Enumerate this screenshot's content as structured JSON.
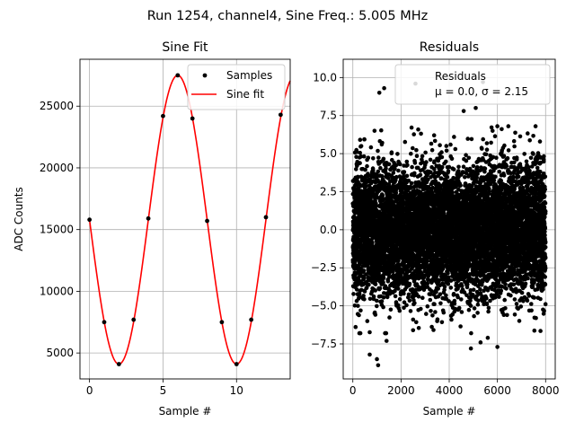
{
  "figure": {
    "suptitle": "Run 1254, channel4, Sine Freq.: 5.005 MHz"
  },
  "colors": {
    "samples": "#000000",
    "fit": "#ff0000",
    "grid": "#b0b0b0",
    "residuals": "#000000"
  },
  "chart_data": [
    {
      "type": "scatter",
      "title": "Sine Fit",
      "xlabel": "Sample #",
      "ylabel": "ADC Counts",
      "xlim": [
        -0.65,
        13.65
      ],
      "ylim": [
        2900,
        28800
      ],
      "xticks": [
        0,
        5,
        10
      ],
      "yticks": [
        5000,
        10000,
        15000,
        20000,
        25000
      ],
      "grid": true,
      "legend_position": "upper right",
      "series": [
        {
          "name": "Samples",
          "style": "points",
          "x": [
            0,
            1,
            2,
            3,
            4,
            5,
            6,
            7,
            8,
            9,
            10,
            11,
            12,
            13
          ],
          "y": [
            15800,
            7500,
            4100,
            7700,
            15900,
            24200,
            27500,
            24000,
            15700,
            7500,
            4100,
            7700,
            16000,
            24300
          ]
        },
        {
          "name": "Sine fit",
          "style": "line",
          "function": {
            "offset": 15800,
            "amplitude": 11700,
            "period": 8,
            "phase_sample": 0
          },
          "x_range": [
            0,
            13.65
          ]
        }
      ]
    },
    {
      "type": "scatter",
      "title": "Residuals",
      "xlabel": "Sample #",
      "ylabel": "",
      "xlim": [
        -400,
        8400
      ],
      "ylim": [
        -9.8,
        11.2
      ],
      "xticks": [
        0,
        2000,
        4000,
        6000,
        8000
      ],
      "yticks": [
        -7.5,
        -5.0,
        -2.5,
        0.0,
        2.5,
        5.0,
        7.5,
        10.0
      ],
      "grid": true,
      "legend_position": "upper right",
      "legend_lines": [
        "Residuals",
        "μ = 0.0, σ = 2.15"
      ],
      "series": [
        {
          "name": "Residuals",
          "mean": 0.0,
          "std": 2.15,
          "sample_count": 8000,
          "outliers": [
            [
              210,
              -5.0
            ],
            [
              350,
              5.5
            ],
            [
              600,
              -6.0
            ],
            [
              700,
              -8.2
            ],
            [
              900,
              6.5
            ],
            [
              1000,
              -8.5
            ],
            [
              1050,
              -8.9
            ],
            [
              1100,
              9.0
            ],
            [
              1200,
              5.6
            ],
            [
              1300,
              9.3
            ],
            [
              1400,
              -7.3
            ],
            [
              2500,
              -6.6
            ],
            [
              2600,
              9.6
            ],
            [
              3500,
              -6.0
            ],
            [
              4200,
              6.1
            ],
            [
              4600,
              7.8
            ],
            [
              4900,
              -7.8
            ],
            [
              5100,
              8.0
            ],
            [
              5300,
              -7.4
            ],
            [
              5400,
              9.7
            ],
            [
              5600,
              -7.1
            ],
            [
              5800,
              6.5
            ],
            [
              6000,
              -7.7
            ],
            [
              6400,
              -5.6
            ],
            [
              7600,
              -5.8
            ]
          ]
        }
      ]
    }
  ]
}
